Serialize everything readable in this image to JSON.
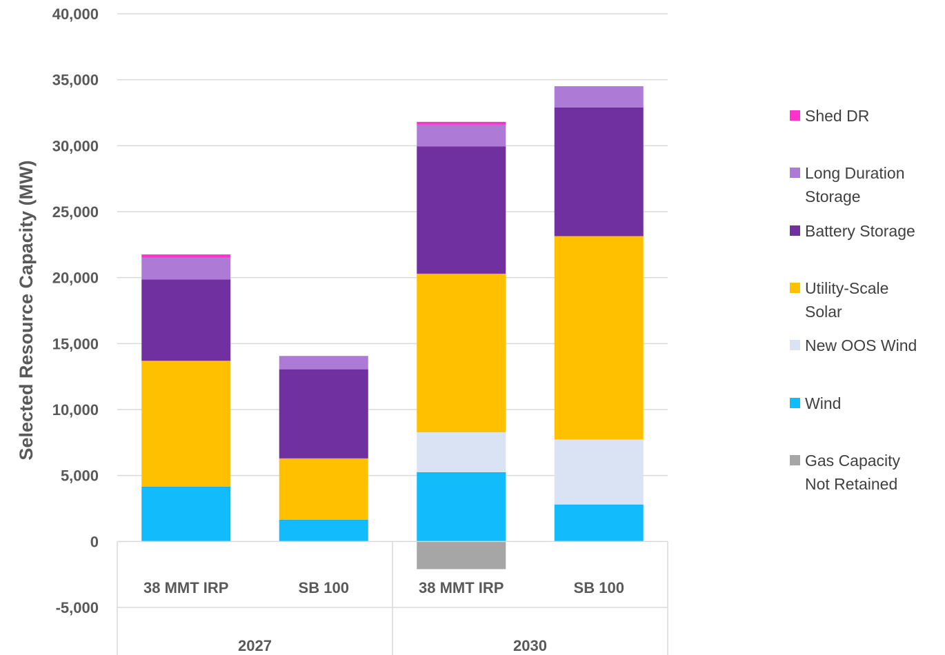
{
  "chart_data": {
    "type": "bar",
    "stacked": true,
    "title": "",
    "ylabel": "Selected Resource Capacity (MW)",
    "ylim": [
      -5000,
      40000
    ],
    "yticks": [
      {
        "value": 40000,
        "label": "40,000"
      },
      {
        "value": 35000,
        "label": "35,000"
      },
      {
        "value": 30000,
        "label": "30,000"
      },
      {
        "value": 25000,
        "label": "25,000"
      },
      {
        "value": 20000,
        "label": "20,000"
      },
      {
        "value": 15000,
        "label": "15,000"
      },
      {
        "value": 10000,
        "label": "10,000"
      },
      {
        "value": 5000,
        "label": "5,000"
      },
      {
        "value": 0,
        "label": "0"
      },
      {
        "value": -5000,
        "label": "-5,000"
      }
    ],
    "grid": true,
    "legend_position": "right",
    "categories": [
      "38 MMT IRP",
      "SB 100",
      "38 MMT IRP",
      "SB 100"
    ],
    "groups": [
      {
        "label": "2027",
        "span": [
          0,
          1
        ]
      },
      {
        "label": "2030",
        "span": [
          2,
          3
        ]
      }
    ],
    "series": [
      {
        "name": "Gas Capacity Not Retained",
        "color": "#a6a6a6",
        "values": [
          0,
          0,
          -2100,
          0
        ]
      },
      {
        "name": "Wind",
        "color": "#12bbfc",
        "values": [
          4150,
          1650,
          5250,
          2800
        ]
      },
      {
        "name": "New OOS Wind",
        "color": "#dae3f3",
        "values": [
          0,
          0,
          3050,
          4950
        ]
      },
      {
        "name": "Utility-Scale Solar",
        "color": "#ffc000",
        "values": [
          9550,
          4650,
          12000,
          15400
        ]
      },
      {
        "name": "Battery Storage",
        "color": "#7030a0",
        "values": [
          6150,
          6750,
          9650,
          9750
        ]
      },
      {
        "name": "Long Duration Storage",
        "color": "#ad7bd6",
        "values": [
          1700,
          1000,
          1650,
          1600
        ]
      },
      {
        "name": "Shed DR",
        "color": "#ff33cc",
        "values": [
          200,
          0,
          200,
          0
        ]
      }
    ],
    "legend": [
      {
        "name": "Shed DR",
        "lines": [
          "Shed DR"
        ],
        "color": "#ff33cc"
      },
      {
        "name": "Long Duration Storage",
        "lines": [
          "Long Duration",
          "Storage"
        ],
        "color": "#ad7bd6"
      },
      {
        "name": "Battery Storage",
        "lines": [
          "Battery Storage"
        ],
        "color": "#7030a0"
      },
      {
        "name": "Utility-Scale Solar",
        "lines": [
          "Utility-Scale",
          "Solar"
        ],
        "color": "#ffc000"
      },
      {
        "name": "New OOS Wind",
        "lines": [
          "New OOS Wind"
        ],
        "color": "#dae3f3"
      },
      {
        "name": "Wind",
        "lines": [
          "Wind"
        ],
        "color": "#12bbfc"
      },
      {
        "name": "Gas Capacity Not Retained",
        "lines": [
          "Gas Capacity",
          "Not Retained"
        ],
        "color": "#a6a6a6"
      }
    ]
  }
}
